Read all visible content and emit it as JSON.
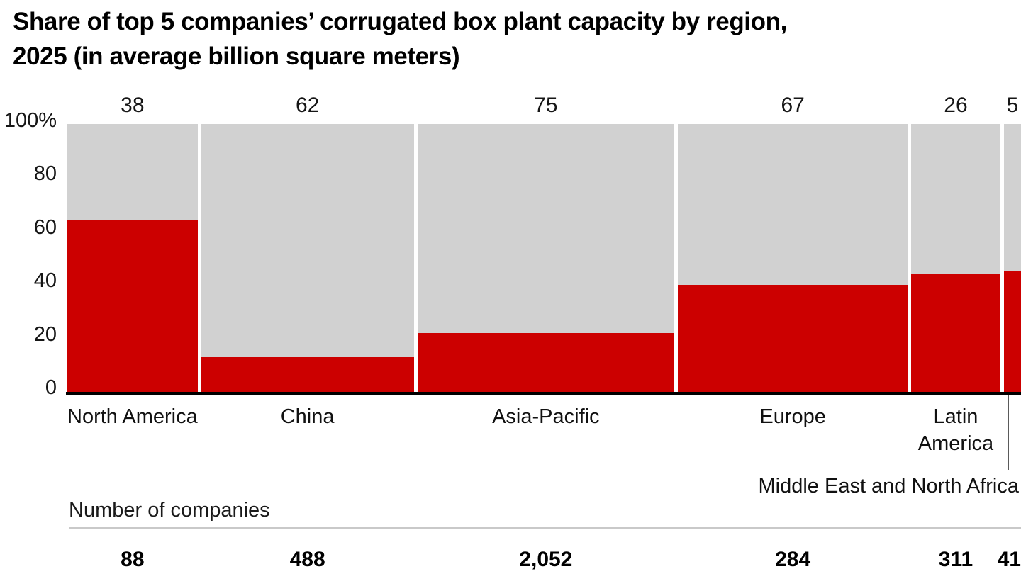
{
  "title": {
    "line1": "Share of top 5 companies’ corrugated box plant capacity by region,",
    "line2": "2025 (in average billion square meters)"
  },
  "footer": {
    "companies_heading": "Number of companies"
  },
  "colors": {
    "top5_red": "#CC0000",
    "others_gray": "#D1D1D1",
    "axis_black": "#000000",
    "rule_gray": "#C9C9C9"
  },
  "chart_data": {
    "type": "marimekko",
    "title": "Share of top 5 companies’ corrugated box plant capacity by region, 2025 (in average billion square meters)",
    "categories": [
      "North America",
      "China",
      "Asia-Pacific",
      "Europe",
      "Latin America",
      "Middle East and North Africa"
    ],
    "capacity_avg_bn_sqm": [
      38,
      62,
      75,
      67,
      26,
      5
    ],
    "top5_share_pct": [
      64,
      13,
      22,
      40,
      44,
      45
    ],
    "number_of_companies": [
      "88",
      "488",
      "2,052",
      "284",
      "311",
      "41"
    ],
    "y_axis": {
      "tick_labels": [
        "100%",
        "80",
        "60",
        "40",
        "20",
        "0"
      ],
      "tick_values": [
        100,
        80,
        60,
        40,
        20,
        0
      ],
      "min": 0,
      "max": 100
    },
    "bar_width_encodes": "capacity_avg_bn_sqm",
    "red_segment_encodes": "top5_share_pct",
    "gray_segment_encodes": "remaining share",
    "legend_visible": false,
    "grid_visible": false,
    "callout_category_index": 5
  }
}
